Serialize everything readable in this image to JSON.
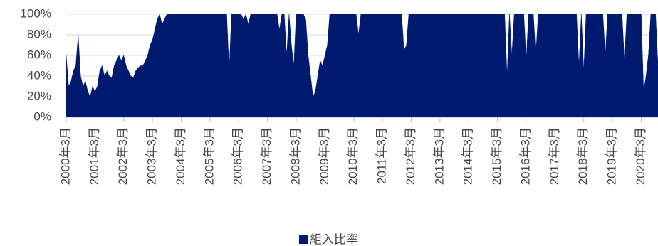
{
  "chart_data": {
    "type": "area",
    "categories": [
      "2000年3月",
      null,
      null,
      null,
      null,
      null,
      null,
      null,
      null,
      null,
      null,
      null,
      "2001年3月",
      null,
      null,
      null,
      null,
      null,
      null,
      null,
      null,
      null,
      null,
      null,
      "2002年3月",
      null,
      null,
      null,
      null,
      null,
      null,
      null,
      null,
      null,
      null,
      null,
      "2003年3月",
      null,
      null,
      null,
      null,
      null,
      null,
      null,
      null,
      null,
      null,
      null,
      "2004年3月",
      null,
      null,
      null,
      null,
      null,
      null,
      null,
      null,
      null,
      null,
      null,
      "2005年3月",
      null,
      null,
      null,
      null,
      null,
      null,
      null,
      null,
      null,
      null,
      null,
      "2006年3月",
      null,
      null,
      null,
      null,
      null,
      null,
      null,
      null,
      null,
      null,
      null,
      "2007年3月",
      null,
      null,
      null,
      null,
      null,
      null,
      null,
      null,
      null,
      null,
      null,
      "2008年3月",
      null,
      null,
      null,
      null,
      null,
      null,
      null,
      null,
      null,
      null,
      null,
      "2009年3月",
      null,
      null,
      null,
      null,
      null,
      null,
      null,
      null,
      null,
      null,
      null,
      "2010年3月",
      null,
      null,
      null,
      null,
      null,
      null,
      null,
      null,
      null,
      null,
      null,
      "2011年3月",
      null,
      null,
      null,
      null,
      null,
      null,
      null,
      null,
      null,
      null,
      null,
      "2012年3月",
      null,
      null,
      null,
      null,
      null,
      null,
      null,
      null,
      null,
      null,
      null,
      "2013年3月",
      null,
      null,
      null,
      null,
      null,
      null,
      null,
      null,
      null,
      null,
      null,
      "2014年3月",
      null,
      null,
      null,
      null,
      null,
      null,
      null,
      null,
      null,
      null,
      null,
      "2015年3月",
      null,
      null,
      null,
      null,
      null,
      null,
      null,
      null,
      null,
      null,
      null,
      "2016年3月",
      null,
      null,
      null,
      null,
      null,
      null,
      null,
      null,
      null,
      null,
      null,
      "2017年3月",
      null,
      null,
      null,
      null,
      null,
      null,
      null,
      null,
      null,
      null,
      null,
      "2018年3月",
      null,
      null,
      null,
      null,
      null,
      null,
      null,
      null,
      null,
      null,
      null,
      "2019年3月",
      null,
      null,
      null,
      null,
      null,
      null,
      null,
      null,
      null,
      null,
      null,
      "2020年3月",
      null,
      null,
      null,
      null,
      null,
      null,
      null
    ],
    "series": [
      {
        "name": "組入比率",
        "color": "#001a70",
        "values": [
          60,
          30,
          35,
          45,
          50,
          80,
          40,
          30,
          35,
          25,
          20,
          30,
          25,
          30,
          45,
          50,
          40,
          45,
          40,
          38,
          50,
          55,
          60,
          55,
          60,
          50,
          45,
          40,
          38,
          45,
          48,
          50,
          50,
          55,
          60,
          70,
          75,
          85,
          95,
          100,
          90,
          95,
          100,
          100,
          100,
          100,
          100,
          100,
          100,
          100,
          100,
          100,
          100,
          100,
          100,
          100,
          100,
          100,
          100,
          100,
          100,
          100,
          100,
          100,
          100,
          100,
          100,
          100,
          45,
          100,
          100,
          100,
          100,
          100,
          95,
          100,
          90,
          100,
          100,
          100,
          100,
          100,
          100,
          100,
          100,
          100,
          100,
          100,
          100,
          85,
          100,
          100,
          60,
          100,
          70,
          50,
          100,
          100,
          100,
          100,
          95,
          60,
          40,
          20,
          25,
          40,
          55,
          50,
          60,
          70,
          100,
          100,
          100,
          100,
          100,
          100,
          100,
          100,
          100,
          100,
          100,
          100,
          80,
          100,
          100,
          100,
          100,
          100,
          100,
          100,
          100,
          100,
          100,
          100,
          100,
          100,
          100,
          100,
          100,
          100,
          100,
          65,
          70,
          100,
          100,
          100,
          100,
          100,
          100,
          100,
          100,
          100,
          100,
          100,
          100,
          100,
          100,
          100,
          100,
          100,
          100,
          100,
          100,
          100,
          100,
          100,
          100,
          100,
          100,
          100,
          100,
          100,
          100,
          100,
          100,
          100,
          100,
          100,
          100,
          100,
          100,
          100,
          100,
          100,
          40,
          100,
          60,
          100,
          100,
          100,
          100,
          100,
          55,
          100,
          100,
          100,
          60,
          100,
          100,
          100,
          100,
          100,
          100,
          100,
          100,
          100,
          100,
          100,
          100,
          100,
          100,
          100,
          100,
          100,
          50,
          100,
          45,
          100,
          100,
          100,
          100,
          100,
          100,
          100,
          100,
          60,
          100,
          100,
          100,
          100,
          100,
          100,
          100,
          55,
          100,
          100,
          100,
          100,
          100,
          100,
          100,
          25,
          40,
          60,
          100,
          100,
          100,
          50
        ]
      }
    ],
    "ylim": [
      0,
      100
    ],
    "yticks": [
      {
        "value": 0,
        "label": "0%"
      },
      {
        "value": 20,
        "label": "20%"
      },
      {
        "value": 40,
        "label": "40%"
      },
      {
        "value": 60,
        "label": "60%"
      },
      {
        "value": 80,
        "label": "80%"
      },
      {
        "value": 100,
        "label": "100%"
      }
    ],
    "grid": true,
    "legend": "bottom"
  }
}
